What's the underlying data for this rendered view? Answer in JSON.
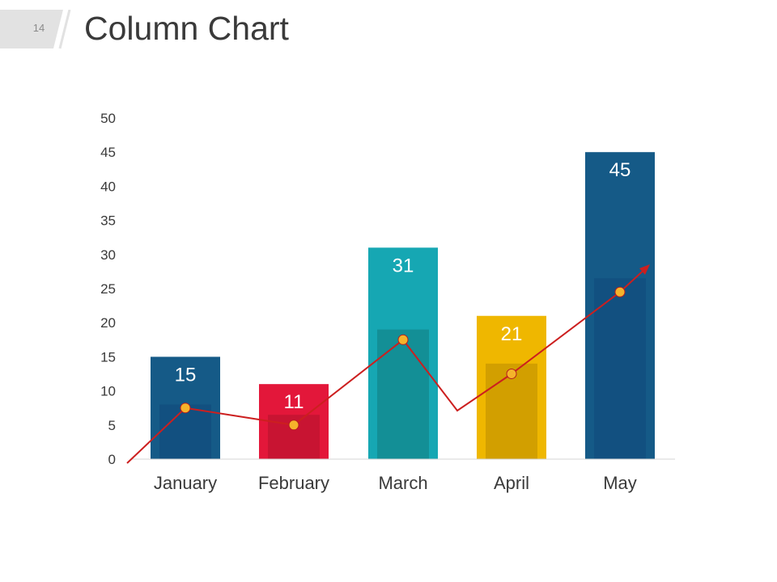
{
  "page": {
    "number": "14",
    "title": "Column Chart"
  },
  "chart_data": {
    "type": "bar",
    "title": "Column Chart",
    "xlabel": "",
    "ylabel": "",
    "categories": [
      "January",
      "February",
      "March",
      "April",
      "May"
    ],
    "series": [
      {
        "type": "bar",
        "values": [
          15,
          11,
          31,
          21,
          45
        ],
        "colors": [
          "#155a87",
          "#e3173a",
          "#16a7b3",
          "#efb700",
          "#155a87"
        ]
      },
      {
        "type": "bar",
        "values": [
          8,
          6.5,
          19,
          14,
          26.5
        ],
        "colors": [
          "#125080",
          "#c81432",
          "#138f96",
          "#d29f00",
          "#125080"
        ]
      },
      {
        "type": "line",
        "values": [
          7.5,
          5,
          17.5,
          12.5,
          24.5
        ],
        "color": "#cc1f1f",
        "marker_color": "#f5b32b"
      }
    ],
    "data_labels": [
      "15",
      "11",
      "31",
      "21",
      "45"
    ],
    "ylim": [
      0,
      50
    ],
    "yticks": [
      0,
      5,
      10,
      15,
      20,
      25,
      30,
      35,
      40,
      45,
      50
    ],
    "grid": false,
    "legend": "none"
  }
}
